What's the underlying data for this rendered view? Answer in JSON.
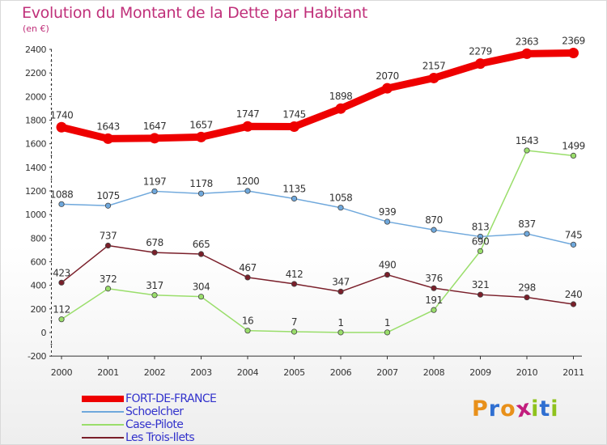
{
  "title": "Evolution du Montant de la Dette par Habitant",
  "subtitle": "(en €)",
  "logo_text": "Proxiti",
  "chart_data": {
    "type": "line",
    "title": "Evolution du Montant de la Dette par Habitant",
    "unit": "(en €)",
    "x": [
      "2000",
      "2001",
      "2002",
      "2003",
      "2004",
      "2005",
      "2006",
      "2007",
      "2008",
      "2009",
      "2010",
      "2011"
    ],
    "ylim": [
      -200,
      2400
    ],
    "yticks": [
      -200,
      0,
      200,
      400,
      600,
      800,
      1000,
      1200,
      1400,
      1600,
      1800,
      2000,
      2200,
      2400
    ],
    "grid": false,
    "legend_position": "bottom-left",
    "series": [
      {
        "name": "FORT-DE-FRANCE",
        "color": "#ee0000",
        "values": [
          1740,
          1643,
          1647,
          1657,
          1747,
          1745,
          1898,
          2070,
          2157,
          2279,
          2363,
          2369
        ]
      },
      {
        "name": "Schoelcher",
        "color": "#6fa8dc",
        "values": [
          1088,
          1075,
          1197,
          1178,
          1200,
          1135,
          1058,
          939,
          870,
          813,
          837,
          745
        ]
      },
      {
        "name": "Case-Pilote",
        "color": "#9ade6b",
        "values": [
          112,
          372,
          317,
          304,
          16,
          7,
          1,
          1,
          191,
          690,
          1543,
          1499
        ]
      },
      {
        "name": "Les Trois-Ilets",
        "color": "#7a1f2a",
        "values": [
          423,
          737,
          678,
          665,
          467,
          412,
          347,
          490,
          376,
          321,
          298,
          240
        ]
      }
    ]
  }
}
